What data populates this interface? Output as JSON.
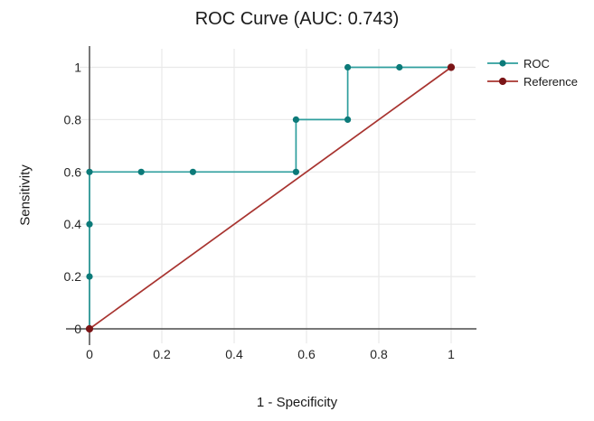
{
  "chart_data": {
    "type": "line",
    "subtype": "roc-step-curve",
    "title": "ROC Curve (AUC: 0.743)",
    "auc": 0.743,
    "xlabel": "1 - Specificity",
    "ylabel": "Sensitivity",
    "xlim": [
      0,
      1
    ],
    "ylim": [
      0,
      1
    ],
    "grid": true,
    "legend_position": "top-right",
    "xticks": {
      "values": [
        0,
        0.2,
        0.4,
        0.6,
        0.8,
        1
      ],
      "labels": [
        "0",
        "0.2",
        "0.4",
        "0.6",
        "0.8",
        "1"
      ]
    },
    "yticks": {
      "values": [
        0,
        0.2,
        0.4,
        0.6,
        0.8,
        1
      ],
      "labels": [
        "0",
        "0.2",
        "0.4",
        "0.6",
        "0.8",
        "1"
      ]
    },
    "series": [
      {
        "name": "ROC",
        "line_color": "#2E9E9D",
        "marker_color": "#0C7A79",
        "marker_radius": 3.6,
        "points": [
          [
            0,
            0
          ],
          [
            0,
            0.2
          ],
          [
            0,
            0.4
          ],
          [
            0,
            0.6
          ],
          [
            0.143,
            0.6
          ],
          [
            0.286,
            0.6
          ],
          [
            0.571,
            0.6
          ],
          [
            0.571,
            0.8
          ],
          [
            0.714,
            0.8
          ],
          [
            0.714,
            1
          ],
          [
            0.857,
            1
          ],
          [
            1,
            1
          ]
        ]
      },
      {
        "name": "Reference",
        "line_color": "#A83430",
        "marker_color": "#7B1517",
        "marker_radius": 4.1,
        "points": [
          [
            0,
            0
          ],
          [
            1,
            1
          ]
        ]
      }
    ],
    "colors": {
      "background": "#FFFFFF",
      "axis_line": "#4D4D4D",
      "gridline": "#E9E9E9",
      "tick_text": "#262626",
      "title_text": "#1A1A1A"
    }
  }
}
